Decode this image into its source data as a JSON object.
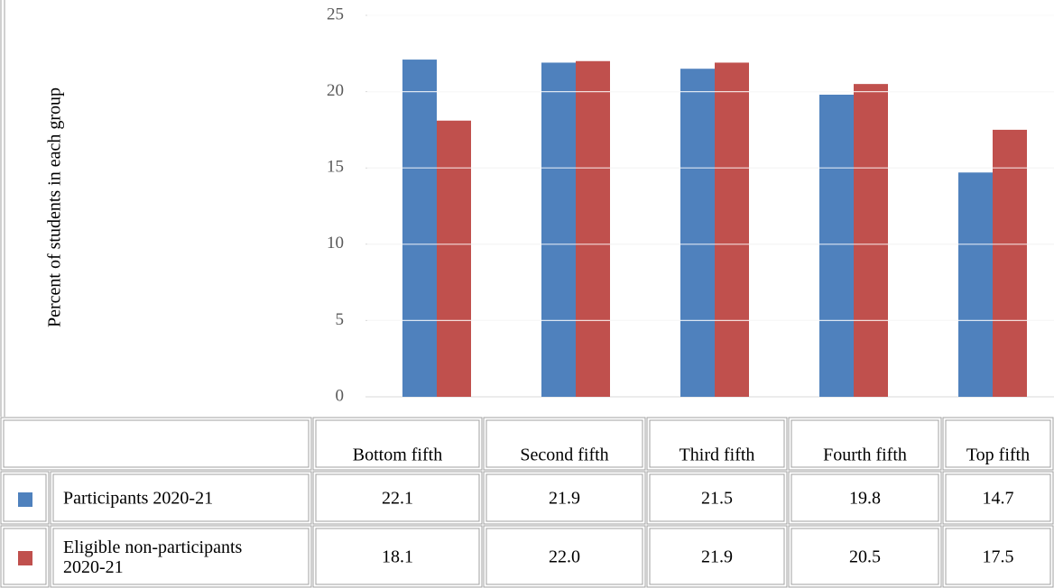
{
  "chart_data": {
    "type": "bar",
    "y_label": "Percent of students in each group",
    "categories": [
      "Bottom fifth",
      "Second fifth",
      "Third fifth",
      "Fourth fifth",
      "Top fifth"
    ],
    "series": [
      {
        "name": "Participants 2020-21",
        "color": "#4f81bd",
        "values": [
          22.1,
          21.9,
          21.5,
          19.8,
          14.7
        ],
        "value_labels": [
          "22.1",
          "21.9",
          "21.5",
          "19.8",
          "14.7"
        ]
      },
      {
        "name": "Eligible non-participants 2020-21",
        "color": "#c0504d",
        "values": [
          18.1,
          22.0,
          21.9,
          20.5,
          17.5
        ],
        "value_labels": [
          "18.1",
          "22.0",
          "21.9",
          "20.5",
          "17.5"
        ]
      }
    ],
    "ylim": [
      0,
      25
    ],
    "yticks": [
      0,
      5,
      10,
      15,
      20,
      25
    ],
    "grid": true
  }
}
